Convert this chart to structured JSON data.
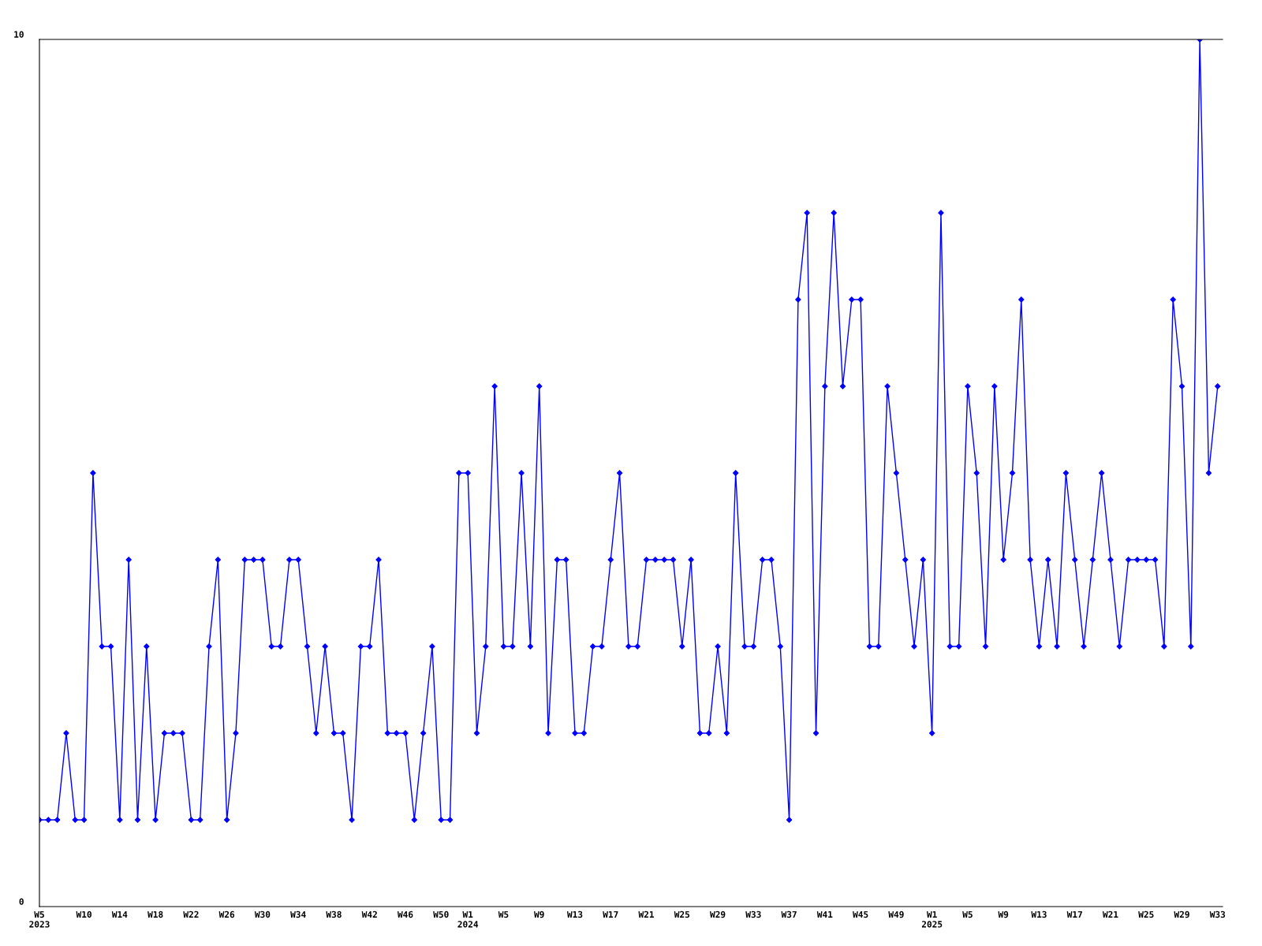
{
  "chart_data": {
    "type": "line",
    "categories": [
      "W5\n2023",
      null,
      null,
      null,
      null,
      "W10",
      null,
      null,
      null,
      "W14",
      null,
      null,
      null,
      "W18",
      null,
      null,
      null,
      "W22",
      null,
      null,
      null,
      "W26",
      null,
      null,
      null,
      "W30",
      null,
      null,
      null,
      "W34",
      null,
      null,
      null,
      "W38",
      null,
      null,
      null,
      "W42",
      null,
      null,
      null,
      "W46",
      null,
      null,
      null,
      "W50",
      null,
      null,
      "W1\n2024",
      null,
      null,
      null,
      "W5",
      null,
      null,
      null,
      "W9",
      null,
      null,
      null,
      "W13",
      null,
      null,
      null,
      "W17",
      null,
      null,
      null,
      "W21",
      null,
      null,
      null,
      "W25",
      null,
      null,
      null,
      "W29",
      null,
      null,
      null,
      "W33",
      null,
      null,
      null,
      "W37",
      null,
      null,
      null,
      "W41",
      null,
      null,
      null,
      "W45",
      null,
      null,
      null,
      "W49",
      null,
      null,
      null,
      "W1\n2025",
      null,
      null,
      null,
      "W5",
      null,
      null,
      null,
      "W9",
      null,
      null,
      null,
      "W13",
      null,
      null,
      null,
      "W17",
      null,
      null,
      null,
      "W21",
      null,
      null,
      null,
      "W25",
      null,
      null,
      null,
      "W29",
      null,
      null,
      null,
      "W33"
    ],
    "series": [
      {
        "color": "#0000ff",
        "values": [
          1,
          1,
          1,
          2,
          1,
          1,
          5,
          3,
          3,
          1,
          4,
          1,
          3,
          1,
          2,
          2,
          2,
          1,
          1,
          3,
          4,
          1,
          2,
          4,
          4,
          4,
          3,
          3,
          4,
          4,
          3,
          2,
          3,
          2,
          2,
          1,
          3,
          3,
          4,
          2,
          2,
          2,
          1,
          2,
          3,
          1,
          1,
          5,
          5,
          2,
          3,
          6,
          3,
          3,
          5,
          3,
          6,
          2,
          4,
          4,
          2,
          2,
          3,
          3,
          4,
          5,
          3,
          3,
          4,
          4,
          4,
          4,
          3,
          4,
          2,
          2,
          3,
          2,
          5,
          3,
          3,
          4,
          4,
          3,
          1,
          7,
          8,
          2,
          6,
          8,
          6,
          7,
          7,
          3,
          3,
          6,
          5,
          4,
          3,
          4,
          2,
          8,
          3,
          3,
          6,
          5,
          3,
          6,
          4,
          5,
          7,
          4,
          3,
          4,
          3,
          5,
          4,
          3,
          4,
          5,
          4,
          3,
          4,
          4,
          4,
          4,
          3,
          7,
          6,
          3,
          10,
          5,
          6
        ]
      }
    ],
    "ylim": [
      0,
      10
    ],
    "yticks": [
      0,
      10
    ],
    "grid": false,
    "legend": false,
    "marker": "diamond",
    "line_style": "solid"
  }
}
